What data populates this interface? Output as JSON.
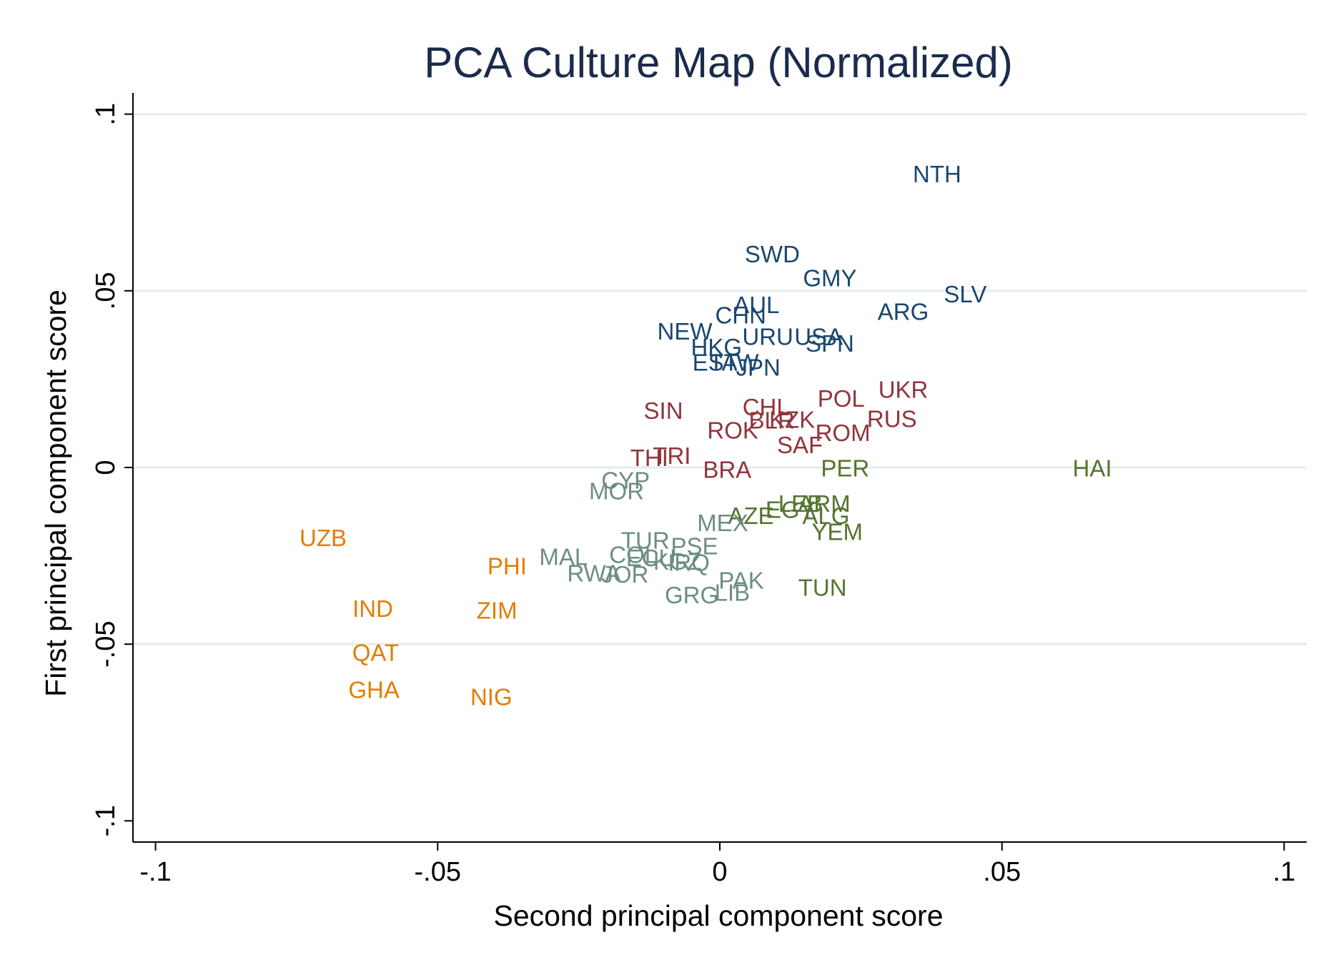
{
  "chart_data": {
    "type": "scatter",
    "title": "PCA Culture Map (Normalized)",
    "xlabel": "Second principal component score",
    "ylabel": "First principal component score",
    "xlim": [
      -0.104,
      0.104
    ],
    "ylim": [
      -0.106,
      0.106
    ],
    "xticks": [
      {
        "value": -0.1,
        "label": "-.1"
      },
      {
        "value": -0.05,
        "label": "-.05"
      },
      {
        "value": 0,
        "label": "0"
      },
      {
        "value": 0.05,
        "label": ".05"
      },
      {
        "value": 0.1,
        "label": ".1"
      }
    ],
    "yticks": [
      {
        "value": -0.1,
        "label": "-.1"
      },
      {
        "value": -0.05,
        "label": "-.05"
      },
      {
        "value": 0,
        "label": "0"
      },
      {
        "value": 0.05,
        "label": ".05"
      },
      {
        "value": 0.1,
        "label": ".1"
      }
    ],
    "grid": true,
    "colors": {
      "grid": "#e3ecef",
      "title": "#1a2b4c"
    },
    "series": [
      {
        "color": "#1a476f",
        "points": [
          {
            "label": "NTH",
            "x": 0.0385,
            "y": 0.0825
          },
          {
            "label": "SWD",
            "x": 0.0093,
            "y": 0.0598
          },
          {
            "label": "GMY",
            "x": 0.0195,
            "y": 0.053
          },
          {
            "label": "SLV",
            "x": 0.0435,
            "y": 0.0485
          },
          {
            "label": "ARG",
            "x": 0.0325,
            "y": 0.0435
          },
          {
            "label": "AUL",
            "x": 0.0065,
            "y": 0.0455
          },
          {
            "label": "CHN",
            "x": 0.0037,
            "y": 0.0425
          },
          {
            "label": "NEW",
            "x": -0.0062,
            "y": 0.038
          },
          {
            "label": "URU",
            "x": 0.0085,
            "y": 0.0365
          },
          {
            "label": "USA",
            "x": 0.0175,
            "y": 0.0365
          },
          {
            "label": "SPN",
            "x": 0.0195,
            "y": 0.0345
          },
          {
            "label": "HKG",
            "x": -0.0006,
            "y": 0.0335
          },
          {
            "label": "EST",
            "x": -0.0008,
            "y": 0.0292
          },
          {
            "label": "TAW",
            "x": 0.0025,
            "y": 0.0292
          },
          {
            "label": "JPN",
            "x": 0.0068,
            "y": 0.0278
          }
        ]
      },
      {
        "color": "#90353b",
        "points": [
          {
            "label": "UKR",
            "x": 0.0325,
            "y": 0.0215
          },
          {
            "label": "POL",
            "x": 0.0215,
            "y": 0.019
          },
          {
            "label": "SIN",
            "x": -0.01,
            "y": 0.0155
          },
          {
            "label": "CHL",
            "x": 0.0082,
            "y": 0.0165
          },
          {
            "label": "BLR",
            "x": 0.0092,
            "y": 0.0128
          },
          {
            "label": "KZK",
            "x": 0.0128,
            "y": 0.013
          },
          {
            "label": "RUS",
            "x": 0.0305,
            "y": 0.0132
          },
          {
            "label": "ROK",
            "x": 0.0023,
            "y": 0.01
          },
          {
            "label": "ROM",
            "x": 0.0218,
            "y": 0.0092
          },
          {
            "label": "SAF",
            "x": 0.0142,
            "y": 0.0058
          },
          {
            "label": "THI",
            "x": -0.0125,
            "y": 0.0022
          },
          {
            "label": "TRI",
            "x": -0.0085,
            "y": 0.0028
          },
          {
            "label": "BRA",
            "x": 0.0013,
            "y": -0.0012
          }
        ]
      },
      {
        "color": "#55752f",
        "points": [
          {
            "label": "HAI",
            "x": 0.066,
            "y": -0.0008
          },
          {
            "label": "PER",
            "x": 0.0222,
            "y": -0.0008
          },
          {
            "label": "LEB",
            "x": 0.0143,
            "y": -0.0108
          },
          {
            "label": "EGY",
            "x": 0.0125,
            "y": -0.0125
          },
          {
            "label": "ARM",
            "x": 0.0185,
            "y": -0.0108
          },
          {
            "label": "ALG",
            "x": 0.0188,
            "y": -0.0142
          },
          {
            "label": "AZE",
            "x": 0.0055,
            "y": -0.0142
          },
          {
            "label": "YEM",
            "x": 0.0208,
            "y": -0.0188
          },
          {
            "label": "TUN",
            "x": 0.0182,
            "y": -0.0345
          }
        ]
      },
      {
        "color": "#6e8e84",
        "points": [
          {
            "label": "CYP",
            "x": -0.0167,
            "y": -0.0042
          },
          {
            "label": "MOR",
            "x": -0.0183,
            "y": -0.0072
          },
          {
            "label": "MEX",
            "x": 0.0005,
            "y": -0.0162
          },
          {
            "label": "TUR",
            "x": -0.0132,
            "y": -0.0212
          },
          {
            "label": "MAL",
            "x": -0.0277,
            "y": -0.0258
          },
          {
            "label": "COL",
            "x": -0.0153,
            "y": -0.0252
          },
          {
            "label": "ECU",
            "x": -0.0122,
            "y": -0.0262
          },
          {
            "label": "PSE",
            "x": -0.0045,
            "y": -0.0228
          },
          {
            "label": "KGZ",
            "x": -0.0075,
            "y": -0.0272
          },
          {
            "label": "IRQ",
            "x": -0.0055,
            "y": -0.0275
          },
          {
            "label": "RWA",
            "x": -0.0223,
            "y": -0.0305
          },
          {
            "label": "JOR",
            "x": -0.0168,
            "y": -0.0308
          },
          {
            "label": "PAK",
            "x": 0.0038,
            "y": -0.0325
          },
          {
            "label": "GRG",
            "x": -0.005,
            "y": -0.0367
          },
          {
            "label": "LIB",
            "x": 0.0022,
            "y": -0.036
          }
        ]
      },
      {
        "color": "#e37e00",
        "points": [
          {
            "label": "UZB",
            "x": -0.0703,
            "y": -0.0205
          },
          {
            "label": "PHI",
            "x": -0.0377,
            "y": -0.0285
          },
          {
            "label": "IND",
            "x": -0.0615,
            "y": -0.0405
          },
          {
            "label": "ZIM",
            "x": -0.0395,
            "y": -0.041
          },
          {
            "label": "QAT",
            "x": -0.061,
            "y": -0.053
          },
          {
            "label": "GHA",
            "x": -0.0613,
            "y": -0.0635
          },
          {
            "label": "NIG",
            "x": -0.0405,
            "y": -0.0655
          }
        ]
      }
    ]
  }
}
